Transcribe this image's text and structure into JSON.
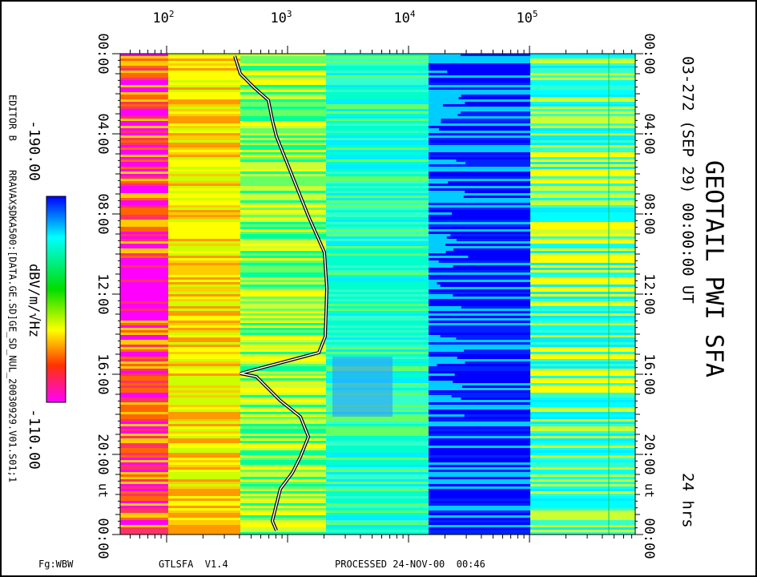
{
  "title": "GEOTAIL PWI SFA",
  "subtitle": "03-272 (SEP 29) 00:00:00 UT",
  "duration": "24 hrs",
  "editor": "EDITOR B",
  "file": "RRAVAX$DKA500:[DATA.GE.SD]GE_SD_NUL_20030929.V01.S01;1",
  "colorbar": {
    "top_label": "-190.00",
    "bottom_label": "-110.00",
    "unit": "dBV/m/√Hz"
  },
  "freq_ticks": [
    {
      "base": "10",
      "exp": "2"
    },
    {
      "base": "10",
      "exp": "3"
    },
    {
      "base": "10",
      "exp": "4"
    },
    {
      "base": "10",
      "exp": "5"
    }
  ],
  "time_ticks": [
    "00:00",
    "04:00",
    "08:00",
    "12:00",
    "16:00",
    "20:00",
    "00:00"
  ],
  "time_unit": "ut",
  "footer": {
    "frame": "Fg:WBW",
    "program": "GTLSFA  V1.4",
    "processed": "PROCESSED 24-NOV-00  00:46"
  }
}
